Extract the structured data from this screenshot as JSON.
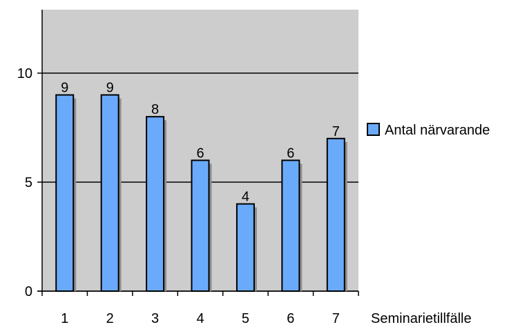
{
  "chart_data": {
    "type": "bar",
    "categories": [
      "1",
      "2",
      "3",
      "4",
      "5",
      "6",
      "7"
    ],
    "series": [
      {
        "name": "Antal närvarande",
        "values": [
          9,
          9,
          8,
          6,
          4,
          6,
          7
        ]
      }
    ],
    "data_labels": [
      "9",
      "9",
      "8",
      "6",
      "4",
      "6",
      "7"
    ],
    "xlabel": "Seminarietillfälle",
    "ylabel": "",
    "ylim": [
      0,
      10
    ],
    "yticks": [
      0,
      5,
      10
    ],
    "ytick_labels": [
      "0",
      "5",
      "10"
    ],
    "grid": true,
    "legend_position": "right",
    "colors": {
      "bar_fill": "#6aaafa",
      "bar_stroke": "#000000",
      "shadow": "#8f8f8f",
      "plot_background": "#cdcdcd",
      "gridline": "#000000"
    }
  }
}
